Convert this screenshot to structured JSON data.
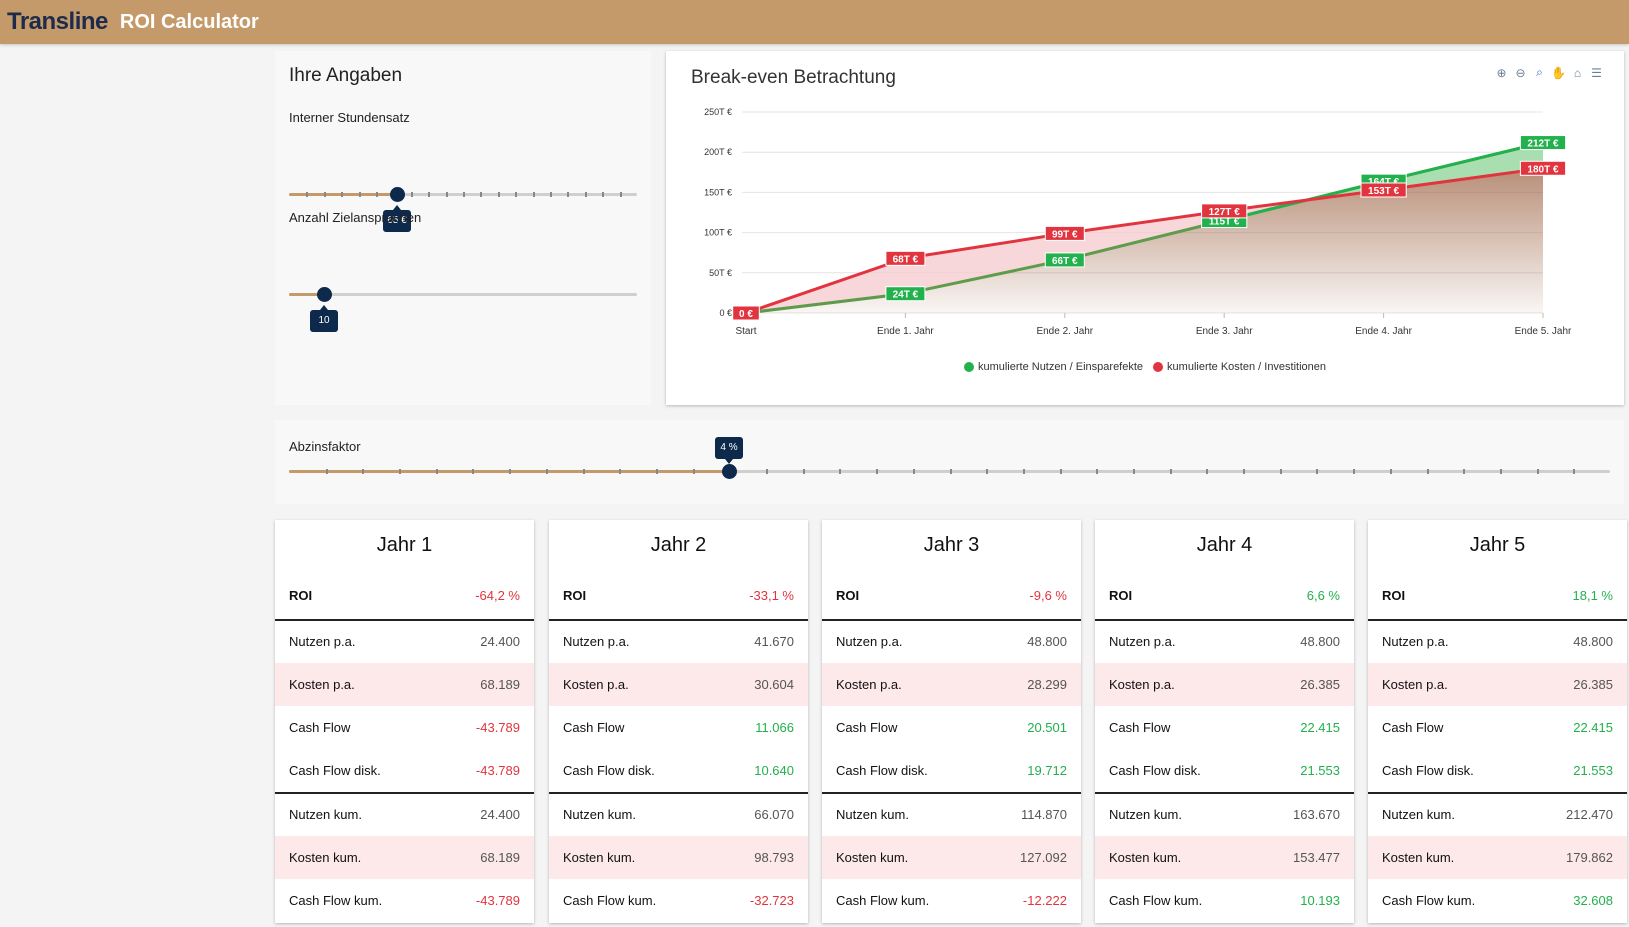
{
  "header": {
    "brand": "Transline",
    "title": "ROI Calculator"
  },
  "inputs": {
    "title": "Ihre Angaben",
    "stundensatz": {
      "label": "Interner Stundensatz",
      "value_label": "65 €",
      "fraction": 0.31
    },
    "zielansprachen": {
      "label": "Anzahl Zielansprachen",
      "value_label": "10",
      "fraction": 0.1
    }
  },
  "abzins": {
    "label": "Abzinsfaktor",
    "value_label": "4 %",
    "fraction": 0.333
  },
  "chart": {
    "title": "Break-even Betrachtung",
    "toolbar": [
      "zoom-in-icon",
      "zoom-out-icon",
      "zoom-selection-icon",
      "pan-hand-icon",
      "home-icon",
      "menu-icon"
    ],
    "legend": [
      "kumulierte Nutzen / Einsparefekte",
      "kumulierte Kosten / Investitionen"
    ]
  },
  "chart_data": {
    "type": "area",
    "categories": [
      "Start",
      "Ende 1. Jahr",
      "Ende 2. Jahr",
      "Ende 3. Jahr",
      "Ende 4. Jahr",
      "Ende 5. Jahr"
    ],
    "y_ticks": [
      "0 €",
      "50T €",
      "100T €",
      "150T €",
      "200T €",
      "250T €"
    ],
    "ylim": [
      0,
      250
    ],
    "series": [
      {
        "name": "kumulierte Nutzen / Einsparefekte",
        "color": "#22b14c",
        "values": [
          0,
          24,
          66,
          115,
          164,
          212
        ],
        "labels": [
          "0 €",
          "24T €",
          "66T €",
          "115T €",
          "164T €",
          "212T €"
        ]
      },
      {
        "name": "kumulierte Kosten / Investitionen",
        "color": "#e2343e",
        "values": [
          0,
          68,
          99,
          127,
          153,
          180
        ],
        "labels": [
          "0 €",
          "68T €",
          "99T €",
          "127T €",
          "153T €",
          "180T €"
        ]
      }
    ]
  },
  "cards": [
    {
      "title": "Jahr 1",
      "roi": "-64,2 %",
      "roi_sign": "neg",
      "rows": [
        {
          "label": "Nutzen p.a.",
          "value": "24.400",
          "tone": ""
        },
        {
          "label": "Kosten p.a.",
          "value": "68.189",
          "tone": ""
        },
        {
          "label": "Cash Flow",
          "value": "-43.789",
          "tone": "neg"
        },
        {
          "label": "Cash Flow disk.",
          "value": "-43.789",
          "tone": "neg"
        },
        {
          "label": "Nutzen kum.",
          "value": "24.400",
          "tone": ""
        },
        {
          "label": "Kosten kum.",
          "value": "68.189",
          "tone": ""
        },
        {
          "label": "Cash Flow kum.",
          "value": "-43.789",
          "tone": "neg"
        }
      ]
    },
    {
      "title": "Jahr 2",
      "roi": "-33,1 %",
      "roi_sign": "neg",
      "rows": [
        {
          "label": "Nutzen p.a.",
          "value": "41.670",
          "tone": ""
        },
        {
          "label": "Kosten p.a.",
          "value": "30.604",
          "tone": ""
        },
        {
          "label": "Cash Flow",
          "value": "11.066",
          "tone": "pos"
        },
        {
          "label": "Cash Flow disk.",
          "value": "10.640",
          "tone": "pos"
        },
        {
          "label": "Nutzen kum.",
          "value": "66.070",
          "tone": ""
        },
        {
          "label": "Kosten kum.",
          "value": "98.793",
          "tone": ""
        },
        {
          "label": "Cash Flow kum.",
          "value": "-32.723",
          "tone": "neg"
        }
      ]
    },
    {
      "title": "Jahr 3",
      "roi": "-9,6 %",
      "roi_sign": "neg",
      "rows": [
        {
          "label": "Nutzen p.a.",
          "value": "48.800",
          "tone": ""
        },
        {
          "label": "Kosten p.a.",
          "value": "28.299",
          "tone": ""
        },
        {
          "label": "Cash Flow",
          "value": "20.501",
          "tone": "pos"
        },
        {
          "label": "Cash Flow disk.",
          "value": "19.712",
          "tone": "pos"
        },
        {
          "label": "Nutzen kum.",
          "value": "114.870",
          "tone": ""
        },
        {
          "label": "Kosten kum.",
          "value": "127.092",
          "tone": ""
        },
        {
          "label": "Cash Flow kum.",
          "value": "-12.222",
          "tone": "neg"
        }
      ]
    },
    {
      "title": "Jahr 4",
      "roi": "6,6 %",
      "roi_sign": "pos",
      "rows": [
        {
          "label": "Nutzen p.a.",
          "value": "48.800",
          "tone": ""
        },
        {
          "label": "Kosten p.a.",
          "value": "26.385",
          "tone": ""
        },
        {
          "label": "Cash Flow",
          "value": "22.415",
          "tone": "pos"
        },
        {
          "label": "Cash Flow disk.",
          "value": "21.553",
          "tone": "pos"
        },
        {
          "label": "Nutzen kum.",
          "value": "163.670",
          "tone": ""
        },
        {
          "label": "Kosten kum.",
          "value": "153.477",
          "tone": ""
        },
        {
          "label": "Cash Flow kum.",
          "value": "10.193",
          "tone": "pos"
        }
      ]
    },
    {
      "title": "Jahr 5",
      "roi": "18,1 %",
      "roi_sign": "pos",
      "rows": [
        {
          "label": "Nutzen p.a.",
          "value": "48.800",
          "tone": ""
        },
        {
          "label": "Kosten p.a.",
          "value": "26.385",
          "tone": ""
        },
        {
          "label": "Cash Flow",
          "value": "22.415",
          "tone": "pos"
        },
        {
          "label": "Cash Flow disk.",
          "value": "21.553",
          "tone": "pos"
        },
        {
          "label": "Nutzen kum.",
          "value": "212.470",
          "tone": ""
        },
        {
          "label": "Kosten kum.",
          "value": "179.862",
          "tone": ""
        },
        {
          "label": "Cash Flow kum.",
          "value": "32.608",
          "tone": "pos"
        }
      ]
    }
  ]
}
